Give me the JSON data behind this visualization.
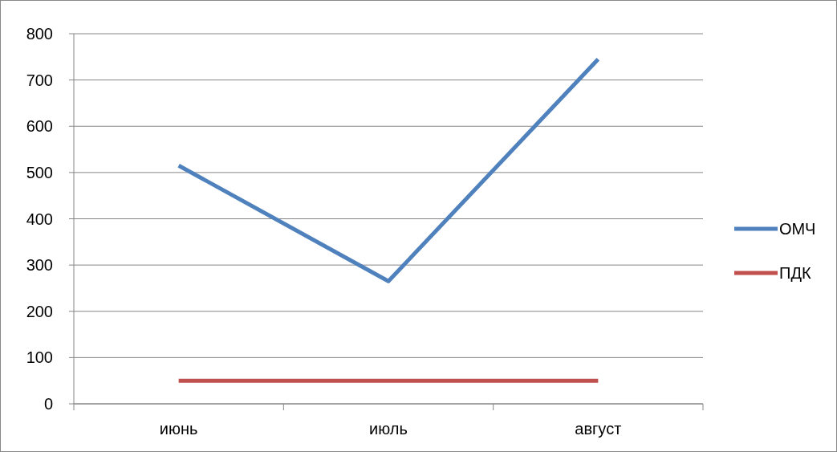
{
  "chart_data": {
    "type": "line",
    "categories": [
      "июнь",
      "июль",
      "август"
    ],
    "series": [
      {
        "name": "ОМЧ",
        "color": "#4f81bd",
        "values": [
          515,
          265,
          745
        ]
      },
      {
        "name": "ПДК",
        "color": "#c0504d",
        "values": [
          50,
          50,
          50
        ]
      }
    ],
    "ylim": [
      0,
      800
    ],
    "yticks": [
      0,
      100,
      200,
      300,
      400,
      500,
      600,
      700,
      800
    ],
    "grid": "y",
    "legend": "right",
    "marker": "none",
    "line_style": "solid"
  }
}
